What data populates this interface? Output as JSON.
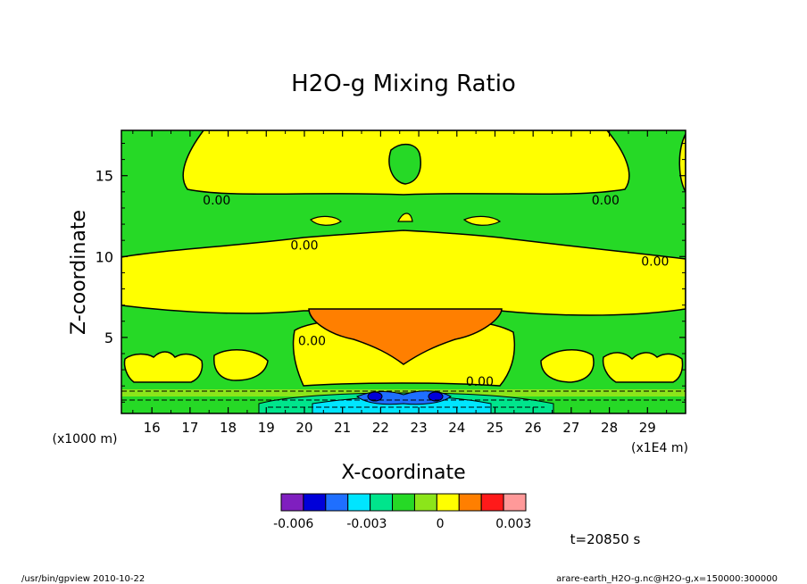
{
  "chart_data": {
    "type": "heatmap",
    "title": "H2O-g Mixing Ratio",
    "xlabel": "X-coordinate",
    "ylabel": "Z-coordinate",
    "x_unit": "(x1E4 m)",
    "y_unit": "(x1000 m)",
    "xlim": [
      15.2,
      30.0
    ],
    "ylim": [
      0.3,
      17.8
    ],
    "x_ticks": [
      "16",
      "17",
      "18",
      "19",
      "20",
      "21",
      "22",
      "23",
      "24",
      "25",
      "26",
      "27",
      "28",
      "29"
    ],
    "y_ticks": [
      "5",
      "10",
      "15"
    ],
    "contour_labels": [
      {
        "text": "0.00",
        "x": 17.7,
        "z": 13.5
      },
      {
        "text": "0.00",
        "x": 27.9,
        "z": 13.5
      },
      {
        "text": "0.00",
        "x": 20.0,
        "z": 10.7
      },
      {
        "text": "0.00",
        "x": 29.2,
        "z": 9.7
      },
      {
        "text": "0.00",
        "x": 20.2,
        "z": 4.8
      },
      {
        "text": "0.00",
        "x": 24.6,
        "z": 2.3
      }
    ],
    "colorbar": {
      "colors": [
        "#7f1fbf",
        "#0000d9",
        "#1f6fff",
        "#00e5ff",
        "#00e58c",
        "#26d926",
        "#8ce51a",
        "#ffff00",
        "#ff7f00",
        "#ff1a1a",
        "#ff9999"
      ],
      "tick_labels": [
        "-0.006",
        "-0.003",
        "0",
        "0.003"
      ],
      "tick_values": [
        -0.006,
        -0.003,
        0,
        0.003
      ],
      "min": -0.0065,
      "max": 0.0035
    },
    "time_label": "t=20850 s"
  },
  "footer": {
    "left": "/usr/bin/gpview   2010-10-22",
    "right": "arare-earth_H2O-g.nc@H2O-g,x=150000:300000"
  }
}
